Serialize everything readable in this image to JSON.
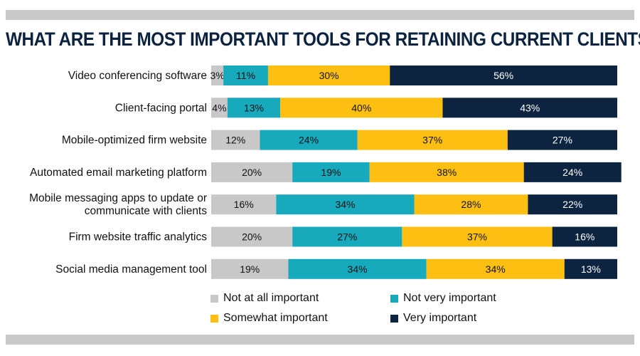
{
  "chart_data": {
    "type": "bar",
    "orientation": "horizontal",
    "stacked": true,
    "percent": true,
    "title": "WHAT ARE THE MOST IMPORTANT TOOLS FOR RETAINING CURRENT CLIENTS?",
    "categories": [
      [
        "Video conferencing software"
      ],
      [
        "Client-facing portal"
      ],
      [
        "Mobile-optimized firm website"
      ],
      [
        "Automated email marketing platform"
      ],
      [
        "Mobile messaging apps to update or",
        "communicate with clients"
      ],
      [
        "Firm website traffic analytics"
      ],
      [
        "Social media management tool"
      ]
    ],
    "series": [
      {
        "name": "Not at all important",
        "color": "#c8c8c8",
        "label_color": "#111111",
        "values": [
          3,
          4,
          12,
          20,
          16,
          20,
          19
        ]
      },
      {
        "name": "Not very important",
        "color": "#17a9bc",
        "label_color": "#111111",
        "values": [
          11,
          13,
          24,
          19,
          34,
          27,
          34
        ]
      },
      {
        "name": "Somewhat important",
        "color": "#fdbf12",
        "label_color": "#111111",
        "values": [
          30,
          40,
          37,
          38,
          28,
          37,
          34
        ]
      },
      {
        "name": "Very important",
        "color": "#0d2440",
        "label_color": "#ffffff",
        "values": [
          56,
          43,
          27,
          24,
          22,
          16,
          13
        ]
      }
    ],
    "legend_position": "bottom",
    "grid": false
  }
}
